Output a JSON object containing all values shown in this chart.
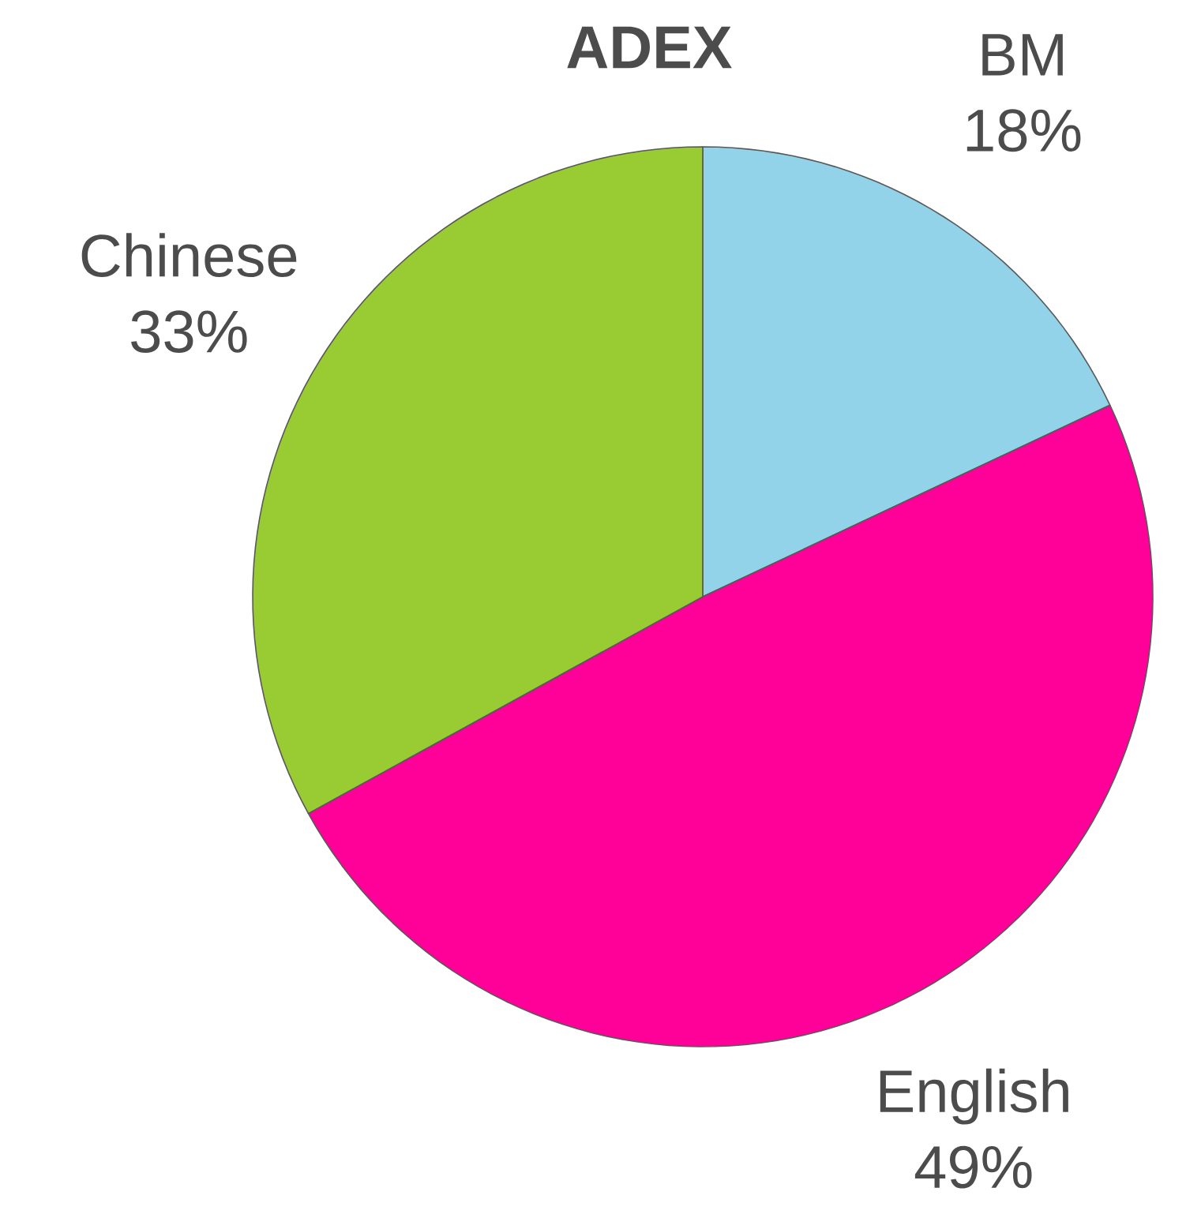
{
  "chart_data": {
    "type": "pie",
    "title": "ADEX",
    "categories": [
      "BM",
      "English",
      "Chinese"
    ],
    "values": [
      18,
      49,
      33
    ],
    "value_labels": [
      "18%",
      "49%",
      "33%"
    ],
    "colors": [
      "#92d3ea",
      "#ff0099",
      "#99cc33"
    ]
  }
}
